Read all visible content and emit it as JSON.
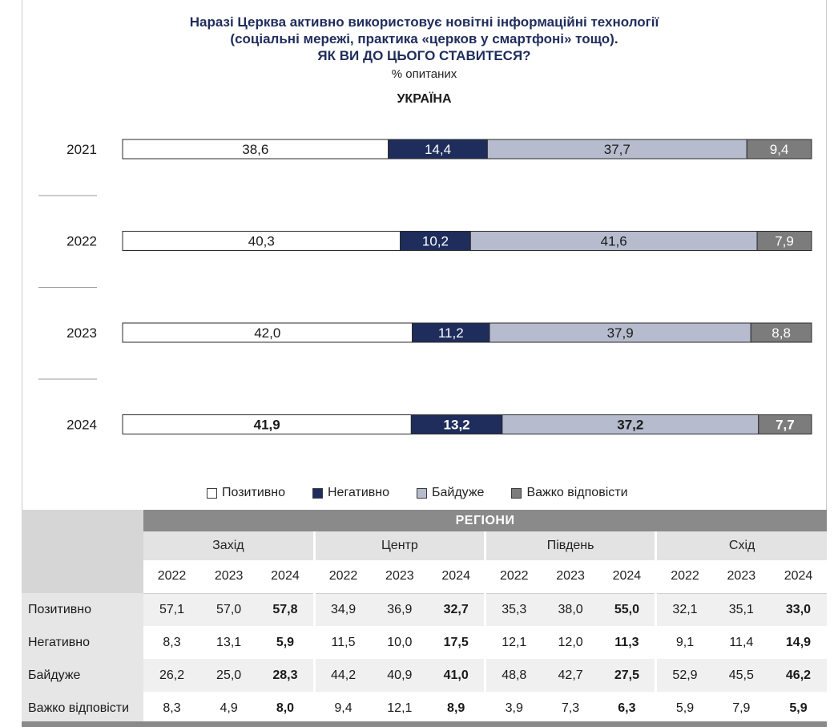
{
  "title": {
    "line1": "Наразі Церква активно використовує новітні інформаційні технології",
    "line2": "(соціальні мережі, практика «церков у смартфоні» тощо).",
    "line3": "ЯК ВИ ДО ЦЬОГО СТАВИТЕСЯ?"
  },
  "subtitle": "% опитаних",
  "panel_title": "УКРАЇНА",
  "colors": {
    "positive": "#ffffff",
    "negative": "#1f2d5c",
    "indifferent": "#b6bccd",
    "hard": "#7c7c7c",
    "title": "#1f2d5c"
  },
  "legend": {
    "positive": "Позитивно",
    "negative": "Негативно",
    "indifferent": "Байдуже",
    "hard": "Важко відповісти"
  },
  "chart_data": {
    "type": "bar",
    "orientation": "horizontal-stacked-100",
    "categories": [
      "2021",
      "2022",
      "2023",
      "2024"
    ],
    "series": [
      {
        "name": "Позитивно",
        "values": [
          38.6,
          40.3,
          42.0,
          41.9
        ],
        "labels": [
          "38,6",
          "40,3",
          "42,0",
          "41,9"
        ]
      },
      {
        "name": "Негативно",
        "values": [
          14.4,
          10.2,
          11.2,
          13.2
        ],
        "labels": [
          "14,4",
          "10,2",
          "11,2",
          "13,2"
        ]
      },
      {
        "name": "Байдуже",
        "values": [
          37.7,
          41.6,
          37.9,
          37.2
        ],
        "labels": [
          "37,7",
          "41,6",
          "37,9",
          "37,2"
        ]
      },
      {
        "name": "Важко відповісти",
        "values": [
          9.4,
          7.9,
          8.8,
          7.7
        ],
        "labels": [
          "9,4",
          "7,9",
          "8,8",
          "7,7"
        ]
      }
    ],
    "bold_last_category": true,
    "title": "УКРАЇНА",
    "legend_position": "bottom"
  },
  "table": {
    "header": "РЕГІОНИ",
    "regions": [
      "Захід",
      "Центр",
      "Південь",
      "Схід"
    ],
    "years": [
      "2022",
      "2023",
      "2024"
    ],
    "rows": [
      {
        "label": "Позитивно",
        "values": [
          "57,1",
          "57,0",
          "57,8",
          "34,9",
          "36,9",
          "32,7",
          "35,3",
          "38,0",
          "55,0",
          "32,1",
          "35,1",
          "33,0"
        ]
      },
      {
        "label": "Негативно",
        "values": [
          "8,3",
          "13,1",
          "5,9",
          "11,5",
          "10,0",
          "17,5",
          "12,1",
          "12,0",
          "11,3",
          "9,1",
          "11,4",
          "14,9"
        ]
      },
      {
        "label": "Байдуже",
        "values": [
          "26,2",
          "25,0",
          "28,3",
          "44,2",
          "40,9",
          "41,0",
          "48,8",
          "42,7",
          "27,5",
          "52,9",
          "45,5",
          "46,2"
        ]
      },
      {
        "label": "Важко відповісти",
        "values": [
          "8,3",
          "4,9",
          "8,0",
          "9,4",
          "12,1",
          "8,9",
          "3,9",
          "7,3",
          "6,3",
          "5,9",
          "7,9",
          "5,9"
        ]
      }
    ]
  }
}
